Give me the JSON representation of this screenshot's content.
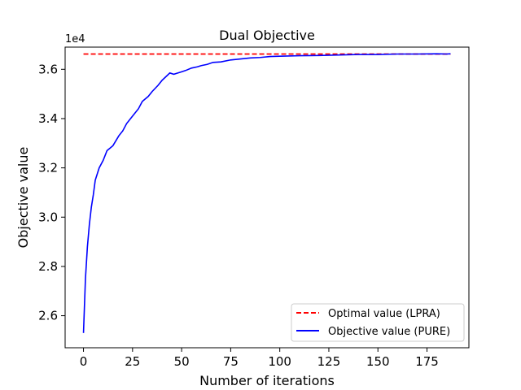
{
  "chart_data": {
    "type": "line",
    "title": "Dual Objective",
    "xlabel": "Number of iterations",
    "ylabel": "Objective value",
    "y_offset_label": "1e4",
    "xlim": [
      -9.35,
      196.35
    ],
    "ylim": [
      24700,
      36900
    ],
    "x_ticks": [
      0,
      25,
      50,
      75,
      100,
      125,
      150,
      175
    ],
    "y_ticks": [
      2.6,
      2.8,
      3.0,
      3.2,
      3.4,
      3.6
    ],
    "y_tick_scale": 10000,
    "grid": false,
    "legend_position": "lower-right",
    "series": [
      {
        "name": "Optimal value (LPRA)",
        "color": "#ff0000",
        "style": "dashed",
        "x": [
          0,
          187
        ],
        "y": [
          36620,
          36620
        ]
      },
      {
        "name": "Objective value (PURE)",
        "color": "#0000ff",
        "style": "solid",
        "x": [
          0,
          1,
          2,
          3,
          4,
          5,
          6,
          8,
          10,
          12,
          15,
          18,
          20,
          22,
          25,
          28,
          30,
          33,
          35,
          38,
          40,
          42,
          44,
          46,
          48,
          50,
          52,
          55,
          58,
          60,
          63,
          66,
          70,
          75,
          80,
          85,
          90,
          95,
          100,
          110,
          120,
          130,
          140,
          150,
          160,
          170,
          180,
          185,
          187
        ],
        "y": [
          25300,
          27500,
          28800,
          29700,
          30400,
          30900,
          31500,
          32000,
          32300,
          32700,
          32900,
          33300,
          33500,
          33800,
          34100,
          34400,
          34700,
          34900,
          35100,
          35350,
          35550,
          35700,
          35850,
          35800,
          35850,
          35900,
          35950,
          36050,
          36100,
          36150,
          36200,
          36280,
          36300,
          36380,
          36420,
          36460,
          36480,
          36520,
          36530,
          36550,
          36560,
          36580,
          36600,
          36600,
          36620,
          36620,
          36630,
          36620,
          36630
        ]
      }
    ]
  }
}
